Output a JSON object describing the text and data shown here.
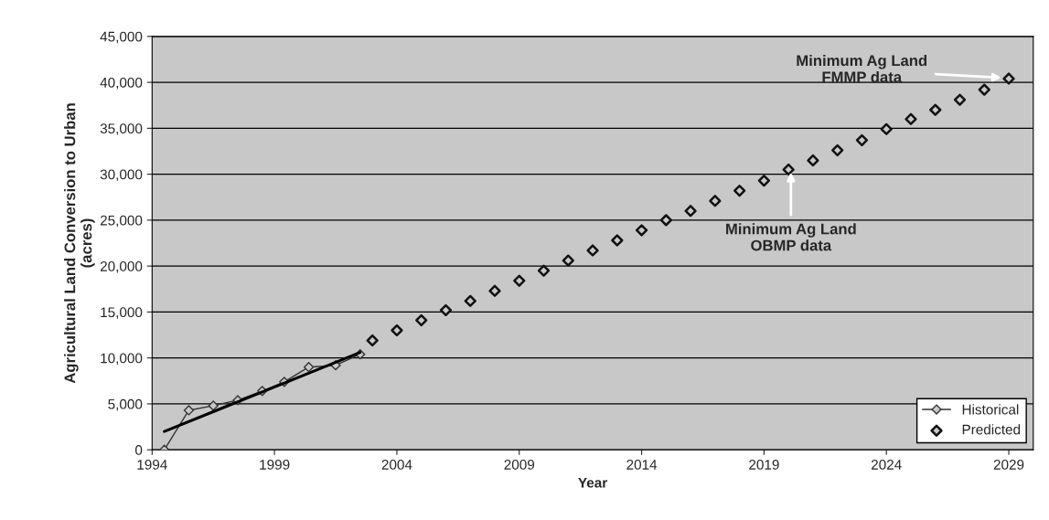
{
  "chart_data": {
    "type": "scatter",
    "xlabel": "Year",
    "ylabel": "Agricultural Land Conversion to Urban\n(acres)",
    "xlim": [
      1994,
      2030
    ],
    "xticks": [
      1994,
      1999,
      2004,
      2009,
      2014,
      2019,
      2024,
      2029
    ],
    "ylim": [
      0,
      45000
    ],
    "yticks": [
      {
        "value": 0,
        "label": "0"
      },
      {
        "value": 5000,
        "label": "5,000"
      },
      {
        "value": 10000,
        "label": "10,000"
      },
      {
        "value": 15000,
        "label": "15,000"
      },
      {
        "value": 20000,
        "label": "20,000"
      },
      {
        "value": 25000,
        "label": "25,000"
      },
      {
        "value": 30000,
        "label": "30,000"
      },
      {
        "value": 35000,
        "label": "35,000"
      },
      {
        "value": 40000,
        "label": "40,000"
      },
      {
        "value": 45000,
        "label": "45,000"
      }
    ],
    "grid": "y",
    "legend": "bottom right",
    "series": [
      {
        "name": "Historical",
        "type": "line",
        "color": "#333333",
        "marker": "diamond",
        "x": [
          1994.5,
          1995.5,
          1996.5,
          1997.5,
          1998.5,
          1999.4,
          2000.4,
          2001.5,
          2002.5
        ],
        "values": [
          0,
          4300,
          4800,
          5400,
          6400,
          7400,
          9000,
          9200,
          10400
        ]
      },
      {
        "name": "Predicted",
        "color": "#111111",
        "marker": "diamond",
        "x": [
          2003,
          2004,
          2005,
          2006,
          2007,
          2008,
          2009,
          2010,
          2011,
          2012,
          2013,
          2014,
          2015,
          2016,
          2017,
          2018,
          2019,
          2020,
          2021,
          2022,
          2023,
          2024,
          2025,
          2026,
          2027,
          2028,
          2029
        ],
        "values": [
          11900,
          13000,
          14100,
          15200,
          16200,
          17300,
          18400,
          19500,
          20600,
          21700,
          22800,
          23900,
          25000,
          26000,
          27100,
          28200,
          29300,
          30500,
          31500,
          32600,
          33700,
          34900,
          36000,
          37000,
          38100,
          39200,
          40400
        ]
      },
      {
        "type": "line",
        "color": "#000000",
        "marker": "none",
        "x": [
          1994.5,
          2002.5
        ],
        "values": [
          2000,
          10600
        ]
      }
    ],
    "annotations": [
      {
        "text": "Minimum Ag Land\nFMMP data",
        "x": 2028.7,
        "y": 40500
      },
      {
        "text": "Minimum Ag Land\nOBMP data",
        "x": 2020.1,
        "y": 30200
      }
    ]
  }
}
